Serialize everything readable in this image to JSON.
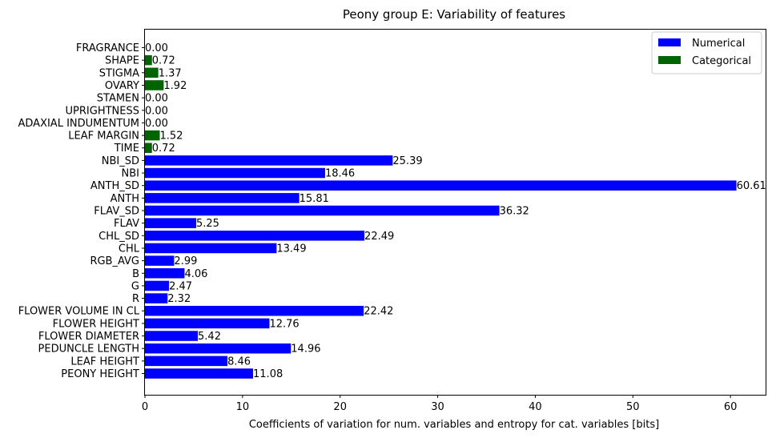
{
  "chart_data": {
    "type": "bar",
    "orientation": "horizontal",
    "title": "Peony group E: Variability of features",
    "xlabel": "Coefficients of variation for num. variables and entropy for cat. variables [bits]",
    "ylabel": "",
    "xlim": [
      0,
      63.6
    ],
    "xticks": [
      0,
      10,
      20,
      30,
      40,
      50,
      60
    ],
    "grid": false,
    "legend_position": "top-right",
    "series": [
      {
        "name": "Numerical",
        "color": "#0000ff"
      },
      {
        "name": "Categorical",
        "color": "#006400"
      }
    ],
    "bars": [
      {
        "label": "PEONY HEIGHT",
        "value": 11.08,
        "value_label": "11.08",
        "series": "Numerical"
      },
      {
        "label": "LEAF HEIGHT",
        "value": 8.46,
        "value_label": "8.46",
        "series": "Numerical"
      },
      {
        "label": "PEDUNCLE LENGTH",
        "value": 14.96,
        "value_label": "14.96",
        "series": "Numerical"
      },
      {
        "label": "FLOWER DIAMETER",
        "value": 5.42,
        "value_label": "5.42",
        "series": "Numerical"
      },
      {
        "label": "FLOWER HEIGHT",
        "value": 12.76,
        "value_label": "12.76",
        "series": "Numerical"
      },
      {
        "label": "FLOWER VOLUME IN CL",
        "value": 22.42,
        "value_label": "22.42",
        "series": "Numerical"
      },
      {
        "label": "R",
        "value": 2.32,
        "value_label": "2.32",
        "series": "Numerical"
      },
      {
        "label": "G",
        "value": 2.47,
        "value_label": "2.47",
        "series": "Numerical"
      },
      {
        "label": "B",
        "value": 4.06,
        "value_label": "4.06",
        "series": "Numerical"
      },
      {
        "label": "RGB_AVG",
        "value": 2.99,
        "value_label": "2.99",
        "series": "Numerical"
      },
      {
        "label": "CHL",
        "value": 13.49,
        "value_label": "13.49",
        "series": "Numerical"
      },
      {
        "label": "CHL_SD",
        "value": 22.49,
        "value_label": "22.49",
        "series": "Numerical"
      },
      {
        "label": "FLAV",
        "value": 5.25,
        "value_label": "5.25",
        "series": "Numerical"
      },
      {
        "label": "FLAV_SD",
        "value": 36.32,
        "value_label": "36.32",
        "series": "Numerical"
      },
      {
        "label": "ANTH",
        "value": 15.81,
        "value_label": "15.81",
        "series": "Numerical"
      },
      {
        "label": "ANTH_SD",
        "value": 60.61,
        "value_label": "60.61",
        "series": "Numerical"
      },
      {
        "label": "NBI",
        "value": 18.46,
        "value_label": "18.46",
        "series": "Numerical"
      },
      {
        "label": "NBI_SD",
        "value": 25.39,
        "value_label": "25.39",
        "series": "Numerical"
      },
      {
        "label": "TIME",
        "value": 0.72,
        "value_label": "0.72",
        "series": "Categorical"
      },
      {
        "label": "LEAF MARGIN",
        "value": 1.52,
        "value_label": "1.52",
        "series": "Categorical"
      },
      {
        "label": "ADAXIAL INDUMENTUM",
        "value": 0.0,
        "value_label": "0.00",
        "series": "Categorical"
      },
      {
        "label": "UPRIGHTNESS",
        "value": 0.0,
        "value_label": "0.00",
        "series": "Categorical"
      },
      {
        "label": "STAMEN",
        "value": 0.0,
        "value_label": "0.00",
        "series": "Categorical"
      },
      {
        "label": "OVARY",
        "value": 1.92,
        "value_label": "1.92",
        "series": "Categorical"
      },
      {
        "label": "STIGMA",
        "value": 1.37,
        "value_label": "1.37",
        "series": "Categorical"
      },
      {
        "label": "SHAPE",
        "value": 0.72,
        "value_label": "0.72",
        "series": "Categorical"
      },
      {
        "label": "FRAGRANCE",
        "value": 0.0,
        "value_label": "0.00",
        "series": "Categorical"
      }
    ]
  }
}
